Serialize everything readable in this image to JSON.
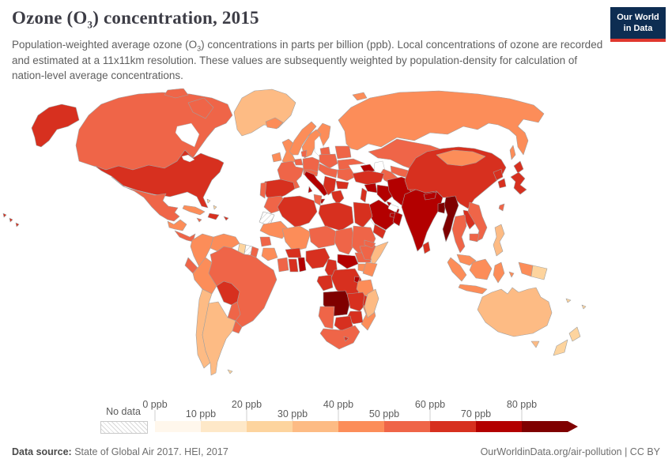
{
  "header": {
    "title_prefix": "Ozone (O",
    "title_sub": "3",
    "title_suffix": ") concentration, 2015",
    "subtitle_prefix": "Population-weighted average ozone (O",
    "subtitle_sub": "3",
    "subtitle_suffix": ") concentrations in parts per billion (ppb). Local concentrations of ozone are recorded and estimated at a 11x11km resolution. These values are subsequently weighted by population-density for calculation of nation-level average concentrations.",
    "logo_line1": "Our World",
    "logo_line2": "in Data",
    "logo_bg": "#0d2d52",
    "logo_stripe": "#e0372e"
  },
  "legend": {
    "no_data_label": "No data",
    "tick_labels": [
      "0 ppb",
      "10 ppb",
      "20 ppb",
      "30 ppb",
      "40 ppb",
      "50 ppb",
      "60 ppb",
      "70 ppb",
      "80 ppb"
    ]
  },
  "footer": {
    "source_label": "Data source:",
    "source_text": " State of Global Air 2017. HEI, 2017",
    "right_text": "OurWorldinData.org/air-pollution | CC BY"
  },
  "chart_data": {
    "type": "heatmap",
    "subtype": "choropleth-world-map",
    "title": "Ozone (O3) concentration, 2015",
    "unit": "ppb",
    "legend_position": "bottom",
    "bins_order": [
      "0-10",
      "10-20",
      "20-30",
      "30-40",
      "40-50",
      "50-60",
      "60-70",
      "70-80",
      "80+"
    ],
    "bin_colors": {
      "0-10": "#fff7ec",
      "10-20": "#fee8c8",
      "20-30": "#fdd49e",
      "30-40": "#fdbb84",
      "40-50": "#fc8d59",
      "50-60": "#ef6548",
      "60-70": "#d7301f",
      "70-80": "#b30000",
      "80+": "#7f0000"
    },
    "no_data_key": "no-data",
    "countries": {
      "united-states": "60-70",
      "canada": "50-60",
      "greenland": "30-40",
      "mexico": "50-60",
      "guatemala-honduras": "40-50",
      "nicaragua-costa-rica-panama": "50-60",
      "cuba": "40-50",
      "haiti-dominican-republic": "60-70",
      "jamaica": "50-60",
      "puerto-rico": "60-70",
      "bahamas": "20-30",
      "colombia": "40-50",
      "venezuela": "40-50",
      "guyana": "20-30",
      "suriname": "no-data",
      "french-guiana": "50-60",
      "ecuador": "50-60",
      "peru": "40-50",
      "brazil": "50-60",
      "bolivia": "60-70",
      "paraguay": "50-60",
      "chile": "30-40",
      "argentina": "30-40",
      "uruguay": "50-60",
      "falkland-islands": "20-30",
      "iceland": "40-50",
      "ireland": "40-50",
      "united-kingdom": "40-50",
      "norway": "40-50",
      "sweden": "40-50",
      "finland": "40-50",
      "svalbard": "40-50",
      "baltics": "50-60",
      "denmark": "50-60",
      "benelux": "50-60",
      "germany": "50-60",
      "poland": "50-60",
      "belarus": "50-60",
      "ukraine": "50-60",
      "france": "50-60",
      "spain": "60-70",
      "portugal": "50-60",
      "italy": "70-80",
      "switzerland-austria": "50-60",
      "czechia-hungary": "50-60",
      "romania": "50-60",
      "balkans": "60-70",
      "bulgaria": "60-70",
      "greece": "60-70",
      "russia": "40-50",
      "kazakhstan": "50-60",
      "uzbekistan": "50-60",
      "turkmenistan": "50-60",
      "kyrgyzstan-tajikistan": "60-70",
      "caucasus": "70-80",
      "turkey": "60-70",
      "syria": "70-80",
      "israel-lebanon-jordan": "60-70",
      "iraq": "70-80",
      "iran": "70-80",
      "saudi-arabia": "70-80",
      "kuwait": "70-80",
      "yemen": "60-70",
      "oman": "70-80",
      "united-arab-emirates": "70-80",
      "afghanistan": "60-70",
      "pakistan": "70-80",
      "india": "70-80",
      "nepal": "70-80",
      "bangladesh": "80+",
      "sri-lanka": "60-70",
      "myanmar": "80+",
      "china": "60-70",
      "mongolia": "40-50",
      "north-korea": "60-70",
      "south-korea": "60-70",
      "japan": "60-70",
      "taiwan": "50-60",
      "thailand": "50-60",
      "laos": "60-70",
      "vietnam": "50-60",
      "cambodia": "50-60",
      "malaysia": "40-50",
      "indonesia": "40-50",
      "philippines": "30-40",
      "papua-new-guinea": "20-30",
      "fiji": "20-30",
      "new-caledonia": "20-30",
      "australia": "30-40",
      "new-zealand": "20-30",
      "morocco": "50-60",
      "western-sahara": "no-data",
      "algeria": "60-70",
      "tunisia": "50-60",
      "libya": "60-70",
      "egypt": "60-70",
      "mauritania": "40-50",
      "mali": "40-50",
      "senegal": "50-60",
      "guinea": "40-50",
      "cote-divoire": "50-60",
      "ghana": "60-70",
      "togo-benin": "70-80",
      "burkina-faso": "60-70",
      "niger": "50-60",
      "nigeria": "60-70",
      "chad": "50-60",
      "sudan": "50-60",
      "eritrea": "50-60",
      "ethiopia": "50-60",
      "somalia": "30-40",
      "south-sudan": "50-60",
      "central-african-republic": "70-80",
      "cameroon": "60-70",
      "congo-gabon": "60-70",
      "dr-congo": "60-70",
      "uganda": "40-50",
      "kenya": "40-50",
      "rwanda-burundi": "70-80",
      "tanzania": "40-50",
      "angola": "80+",
      "zambia": "60-70",
      "malawi": "60-70",
      "mozambique": "40-50",
      "zimbabwe": "60-70",
      "botswana": "60-70",
      "namibia": "50-60",
      "south-africa": "50-60",
      "lesotho": "60-70",
      "madagascar": "30-40"
    }
  }
}
